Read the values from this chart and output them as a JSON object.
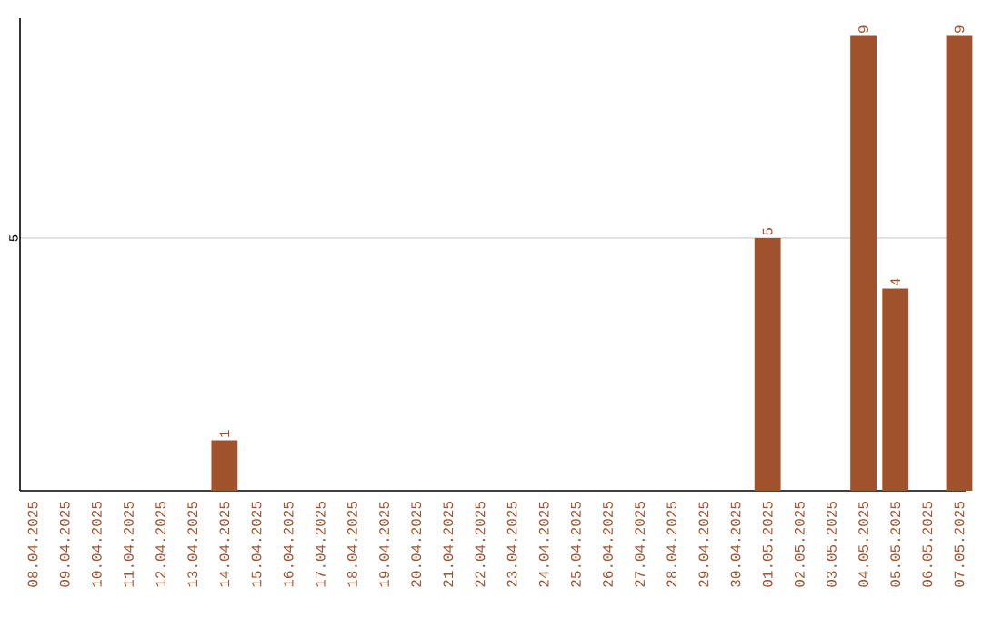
{
  "chart_data": {
    "type": "bar",
    "categories": [
      "08.04.2025",
      "09.04.2025",
      "10.04.2025",
      "11.04.2025",
      "12.04.2025",
      "13.04.2025",
      "14.04.2025",
      "15.04.2025",
      "16.04.2025",
      "17.04.2025",
      "18.04.2025",
      "19.04.2025",
      "20.04.2025",
      "21.04.2025",
      "22.04.2025",
      "23.04.2025",
      "24.04.2025",
      "25.04.2025",
      "26.04.2025",
      "27.04.2025",
      "28.04.2025",
      "29.04.2025",
      "30.04.2025",
      "01.05.2025",
      "02.05.2025",
      "03.05.2025",
      "04.05.2025",
      "05.05.2025",
      "06.05.2025",
      "07.05.2025"
    ],
    "values": [
      0,
      0,
      0,
      0,
      0,
      0,
      1,
      0,
      0,
      0,
      0,
      0,
      0,
      0,
      0,
      0,
      0,
      0,
      0,
      0,
      0,
      0,
      0,
      5,
      0,
      0,
      9,
      4,
      0,
      9
    ],
    "value_labels": [
      null,
      null,
      null,
      null,
      null,
      null,
      "1",
      null,
      null,
      null,
      null,
      null,
      null,
      null,
      null,
      null,
      null,
      null,
      null,
      null,
      null,
      null,
      null,
      "5",
      null,
      null,
      "9",
      "4",
      null,
      "9"
    ],
    "color": "#a0522d",
    "ylim": [
      0,
      9.35
    ],
    "yticks": [
      5
    ],
    "grid": "y"
  }
}
